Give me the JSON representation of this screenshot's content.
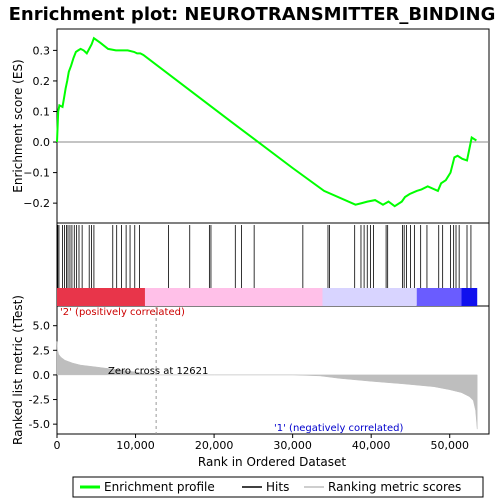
{
  "chart_data": {
    "type": "line",
    "title": "Enrichment plot: NEUROTRANSMITTER_BINDING",
    "xlabel": "Rank in Ordered Dataset",
    "xlim": [
      0,
      55000
    ],
    "x_ticks": [
      0,
      10000,
      20000,
      30000,
      40000,
      50000
    ],
    "x_tick_labels": [
      "0",
      "10,000",
      "20,000",
      "30,000",
      "40,000",
      "50,000"
    ],
    "panels": {
      "enrichment": {
        "ylabel": "Enrichment score (ES)",
        "ylim": [
          -0.265,
          0.37
        ],
        "y_ticks": [
          -0.2,
          -0.1,
          0.0,
          0.1,
          0.2,
          0.3
        ],
        "y_tick_labels": [
          "−0.2",
          "−0.1",
          "0.0",
          "0.1",
          "0.2",
          "0.3"
        ],
        "series": [
          {
            "name": "Enrichment profile",
            "color": "#00ff00",
            "x": [
              0,
              150,
              300,
              700,
              900,
              1100,
              1300,
              1500,
              1800,
              2100,
              2400,
              2700,
              3000,
              3400,
              3800,
              4100,
              4400,
              4700,
              5500,
              6500,
              7500,
              8200,
              9000,
              9800,
              10200,
              10600,
              11000,
              22000,
              30000,
              34000,
              38000,
              38800,
              39500,
              40500,
              41500,
              42200,
              43000,
              43900,
              44300,
              44900,
              45800,
              46400,
              47200,
              48500,
              48900,
              49500,
              50100,
              50600,
              51000,
              51600,
              52200,
              52800,
              53400
            ],
            "y": [
              0.0,
              0.1,
              0.12,
              0.115,
              0.145,
              0.175,
              0.2,
              0.23,
              0.25,
              0.275,
              0.295,
              0.3,
              0.305,
              0.3,
              0.29,
              0.305,
              0.32,
              0.34,
              0.325,
              0.305,
              0.3,
              0.3,
              0.3,
              0.295,
              0.29,
              0.29,
              0.285,
              0.07,
              -0.085,
              -0.16,
              -0.205,
              -0.2,
              -0.195,
              -0.19,
              -0.205,
              -0.195,
              -0.21,
              -0.195,
              -0.18,
              -0.17,
              -0.16,
              -0.155,
              -0.145,
              -0.16,
              -0.135,
              -0.125,
              -0.1,
              -0.05,
              -0.045,
              -0.055,
              -0.06,
              0.015,
              0.005
            ]
          }
        ]
      },
      "hits": {
        "name": "Hits",
        "color": "#000000",
        "positions": [
          100,
          250,
          700,
          950,
          1200,
          1400,
          1650,
          1900,
          2200,
          2500,
          2800,
          3200,
          4100,
          4400,
          4700,
          7100,
          7600,
          8200,
          8800,
          9300,
          9900,
          10500,
          14200,
          16900,
          19400,
          19600,
          22700,
          23500,
          25100,
          31300,
          34500,
          34700,
          37900,
          38700,
          39100,
          39500,
          39900,
          40300,
          41900,
          42100,
          44000,
          44200,
          44500,
          45000,
          45500,
          46300,
          47100,
          48600,
          49100,
          50100,
          50500,
          50800,
          51200,
          52200,
          52700
        ]
      },
      "ranking_bar": {
        "zones": [
          {
            "from": 0,
            "to": 11200,
            "color": "#e8354a"
          },
          {
            "from": 11200,
            "to": 33800,
            "color": "#ffc0e8"
          },
          {
            "from": 33800,
            "to": 45800,
            "color": "#d8d4ff"
          },
          {
            "from": 45800,
            "to": 51500,
            "color": "#6a5cff"
          },
          {
            "from": 51500,
            "to": 53500,
            "color": "#1010ee"
          }
        ]
      },
      "metric": {
        "ylabel": "Ranked list metric (tTest)",
        "ylim": [
          -6,
          7
        ],
        "y_ticks": [
          -5.0,
          -2.5,
          0.0,
          2.5,
          5.0
        ],
        "y_tick_labels": [
          "-5.0",
          "-2.5",
          "0.0",
          "2.5",
          "5.0"
        ],
        "name": "Ranking metric scores",
        "color": "#bebebe",
        "x": [
          0,
          50,
          200,
          500,
          1000,
          2000,
          3000,
          5000,
          8000,
          10000,
          12621,
          20000,
          30000,
          33500,
          36000,
          40000,
          44000,
          48000,
          50000,
          51500,
          52500,
          53000,
          53300,
          53500
        ],
        "y": [
          3.4,
          2.6,
          2.1,
          1.8,
          1.5,
          1.2,
          1.0,
          0.8,
          0.5,
          0.3,
          0.0,
          0.0,
          0.0,
          -0.1,
          -0.35,
          -0.65,
          -0.9,
          -1.2,
          -1.5,
          -1.8,
          -2.2,
          -2.6,
          -3.6,
          -5.5
        ]
      }
    },
    "annotations": {
      "zero_cross": "Zero cross at 12621",
      "zero_cross_x": 12621,
      "positive_label": "'2' (positively correlated)",
      "negative_label": "'1' (negatively correlated)"
    },
    "legend": {
      "placement": "bottom",
      "entries": [
        "Enrichment profile",
        "Hits",
        "Ranking metric scores"
      ]
    }
  }
}
